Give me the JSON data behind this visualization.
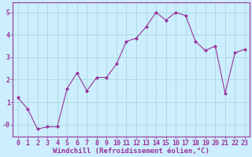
{
  "x": [
    0,
    1,
    2,
    3,
    4,
    5,
    6,
    7,
    8,
    9,
    10,
    11,
    12,
    13,
    14,
    15,
    16,
    17,
    18,
    19,
    20,
    21,
    22,
    23
  ],
  "y": [
    1.2,
    0.7,
    -0.2,
    -0.1,
    -0.1,
    1.6,
    2.3,
    1.5,
    2.1,
    2.1,
    2.7,
    3.7,
    3.85,
    4.35,
    5.0,
    4.65,
    5.0,
    4.85,
    3.7,
    3.3,
    3.5,
    1.4,
    3.2,
    3.35
  ],
  "line_color": "#993399",
  "marker": "D",
  "marker_size": 2.0,
  "bg_color": "#cceeff",
  "grid_color": "#aadddd",
  "ytick_vals": [
    0,
    1,
    2,
    3,
    4,
    5
  ],
  "ytick_labels": [
    "-0",
    "1",
    "2",
    "3",
    "4",
    "5"
  ],
  "xtick_labels": [
    "0",
    "1",
    "2",
    "3",
    "4",
    "5",
    "6",
    "7",
    "8",
    "9",
    "10",
    "11",
    "12",
    "13",
    "14",
    "15",
    "16",
    "17",
    "18",
    "19",
    "20",
    "21",
    "22",
    "23"
  ],
  "xlabel": "Windchill (Refroidissement éolien,°C)",
  "ylim": [
    -0.55,
    5.45
  ],
  "xlim": [
    -0.5,
    23.5
  ],
  "xlabel_fontsize": 6.5,
  "tick_fontsize": 6.0,
  "xlabel_color": "#993399",
  "tick_color": "#993399",
  "axis_color": "#993399",
  "line_width": 0.8
}
